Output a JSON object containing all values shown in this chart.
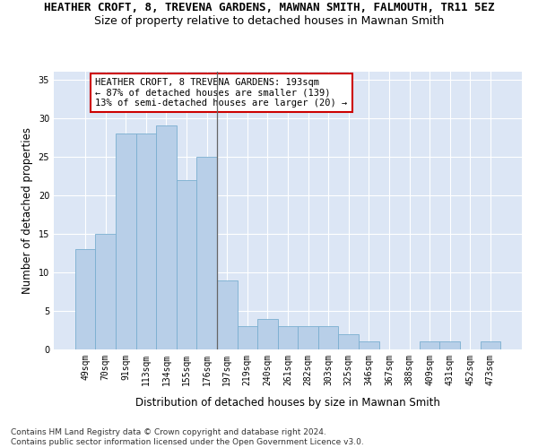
{
  "title": "HEATHER CROFT, 8, TREVENA GARDENS, MAWNAN SMITH, FALMOUTH, TR11 5EZ",
  "subtitle": "Size of property relative to detached houses in Mawnan Smith",
  "xlabel": "Distribution of detached houses by size in Mawnan Smith",
  "ylabel": "Number of detached properties",
  "categories": [
    "49sqm",
    "70sqm",
    "91sqm",
    "113sqm",
    "134sqm",
    "155sqm",
    "176sqm",
    "197sqm",
    "219sqm",
    "240sqm",
    "261sqm",
    "282sqm",
    "303sqm",
    "325sqm",
    "346sqm",
    "367sqm",
    "388sqm",
    "409sqm",
    "431sqm",
    "452sqm",
    "473sqm"
  ],
  "values": [
    13,
    15,
    28,
    28,
    29,
    22,
    25,
    9,
    3,
    4,
    3,
    3,
    3,
    2,
    1,
    0,
    0,
    1,
    1,
    0,
    1
  ],
  "bar_color": "#b8cfe8",
  "bar_edge_color": "#7aaed0",
  "annotation_text": "HEATHER CROFT, 8 TREVENA GARDENS: 193sqm\n← 87% of detached houses are smaller (139)\n13% of semi-detached houses are larger (20) →",
  "annotation_box_color": "#ffffff",
  "annotation_box_edge": "#cc0000",
  "ylim": [
    0,
    36
  ],
  "yticks": [
    0,
    5,
    10,
    15,
    20,
    25,
    30,
    35
  ],
  "background_color": "#dce6f5",
  "grid_color": "#ffffff",
  "footnote": "Contains HM Land Registry data © Crown copyright and database right 2024.\nContains public sector information licensed under the Open Government Licence v3.0.",
  "title_fontsize": 9,
  "subtitle_fontsize": 9,
  "xlabel_fontsize": 8.5,
  "ylabel_fontsize": 8.5,
  "tick_fontsize": 7,
  "annot_fontsize": 7.5,
  "footnote_fontsize": 6.5,
  "vline_x": 6.5
}
